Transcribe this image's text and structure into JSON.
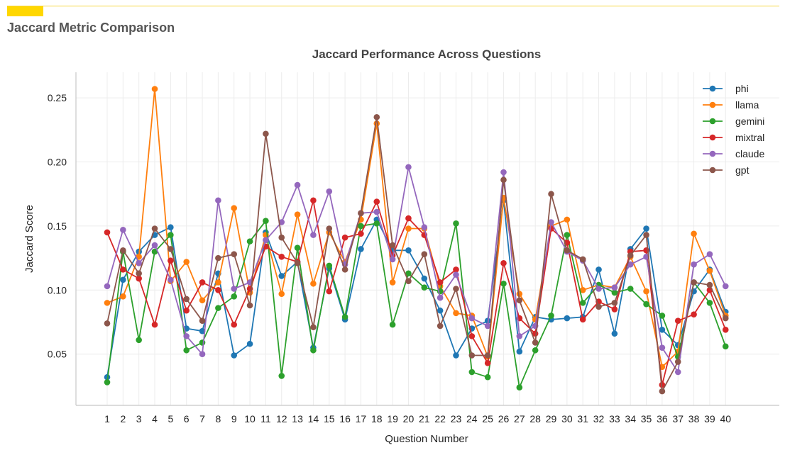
{
  "page": {
    "section_title": "Jaccard Metric Comparison"
  },
  "chart_data": {
    "type": "line",
    "title": "Jaccard Performance Across Questions",
    "xlabel": "Question Number",
    "ylabel": "Jaccard Score",
    "ylim": [
      0.01,
      0.27
    ],
    "yticks": [
      0.05,
      0.1,
      0.15,
      0.2,
      0.25
    ],
    "ytick_labels": [
      "0.05",
      "0.10",
      "0.15",
      "0.20",
      "0.25"
    ],
    "grid": true,
    "legend_position": "top-right",
    "categories": [
      "1",
      "2",
      "3",
      "4",
      "5",
      "6",
      "7",
      "8",
      "9",
      "10",
      "11",
      "12",
      "13",
      "14",
      "15",
      "16",
      "17",
      "18",
      "19",
      "20",
      "21",
      "22",
      "23",
      "24",
      "25",
      "26",
      "27",
      "28",
      "29",
      "30",
      "31",
      "32",
      "33",
      "34",
      "35",
      "36",
      "37",
      "38",
      "39",
      "40"
    ],
    "series": [
      {
        "name": "phi",
        "color": "#1f77b4",
        "values": [
          0.032,
          0.108,
          0.13,
          0.143,
          0.149,
          0.07,
          0.068,
          0.113,
          0.049,
          0.058,
          0.145,
          0.111,
          0.122,
          0.055,
          0.117,
          0.077,
          0.132,
          0.155,
          0.131,
          0.131,
          0.109,
          0.084,
          0.049,
          0.07,
          0.076,
          0.17,
          0.052,
          0.079,
          0.077,
          0.078,
          0.079,
          0.116,
          0.066,
          0.132,
          0.148,
          0.069,
          0.057,
          0.099,
          0.116,
          0.083
        ]
      },
      {
        "name": "llama",
        "color": "#ff7f0e",
        "values": [
          0.09,
          0.095,
          0.126,
          0.257,
          0.107,
          0.122,
          0.092,
          0.106,
          0.164,
          0.098,
          0.143,
          0.097,
          0.159,
          0.105,
          0.145,
          0.122,
          0.155,
          0.23,
          0.106,
          0.148,
          0.148,
          0.103,
          0.082,
          0.08,
          0.048,
          0.172,
          0.097,
          0.077,
          0.15,
          0.155,
          0.1,
          0.104,
          0.102,
          0.126,
          0.099,
          0.04,
          0.052,
          0.144,
          0.115,
          0.08
        ]
      },
      {
        "name": "gemini",
        "color": "#2ca02c",
        "values": [
          0.028,
          0.13,
          0.061,
          0.13,
          0.143,
          0.053,
          0.059,
          0.086,
          0.095,
          0.138,
          0.154,
          0.033,
          0.133,
          0.053,
          0.119,
          0.079,
          0.15,
          0.152,
          0.073,
          0.113,
          0.102,
          0.099,
          0.152,
          0.036,
          0.032,
          0.105,
          0.024,
          0.053,
          0.08,
          0.143,
          0.09,
          0.104,
          0.098,
          0.101,
          0.089,
          0.08,
          0.048,
          0.106,
          0.09,
          0.056
        ]
      },
      {
        "name": "mixtral",
        "color": "#d62728",
        "values": [
          0.145,
          0.116,
          0.109,
          0.073,
          0.123,
          0.084,
          0.106,
          0.1,
          0.073,
          0.101,
          0.134,
          0.126,
          0.122,
          0.17,
          0.099,
          0.141,
          0.144,
          0.169,
          0.127,
          0.156,
          0.143,
          0.106,
          0.116,
          0.064,
          0.043,
          0.121,
          0.078,
          0.066,
          0.148,
          0.137,
          0.077,
          0.091,
          0.085,
          0.13,
          0.131,
          0.026,
          0.076,
          0.081,
          0.1,
          0.069
        ]
      },
      {
        "name": "claude",
        "color": "#9467bd",
        "values": [
          0.103,
          0.147,
          0.121,
          0.135,
          0.108,
          0.064,
          0.05,
          0.17,
          0.101,
          0.106,
          0.139,
          0.153,
          0.182,
          0.143,
          0.177,
          0.12,
          0.16,
          0.161,
          0.124,
          0.196,
          0.149,
          0.094,
          0.112,
          0.078,
          0.072,
          0.192,
          0.064,
          0.072,
          0.153,
          0.13,
          0.123,
          0.101,
          0.102,
          0.12,
          0.126,
          0.055,
          0.036,
          0.12,
          0.128,
          0.103
        ]
      },
      {
        "name": "gpt",
        "color": "#8c564b",
        "values": [
          0.074,
          0.131,
          0.113,
          0.148,
          0.132,
          0.093,
          0.076,
          0.125,
          0.128,
          0.088,
          0.222,
          0.141,
          0.121,
          0.071,
          0.148,
          0.116,
          0.16,
          0.235,
          0.135,
          0.107,
          0.128,
          0.072,
          0.101,
          0.049,
          0.049,
          0.186,
          0.092,
          0.059,
          0.175,
          0.131,
          0.124,
          0.087,
          0.09,
          0.127,
          0.143,
          0.021,
          0.044,
          0.106,
          0.104,
          0.078
        ]
      }
    ]
  }
}
